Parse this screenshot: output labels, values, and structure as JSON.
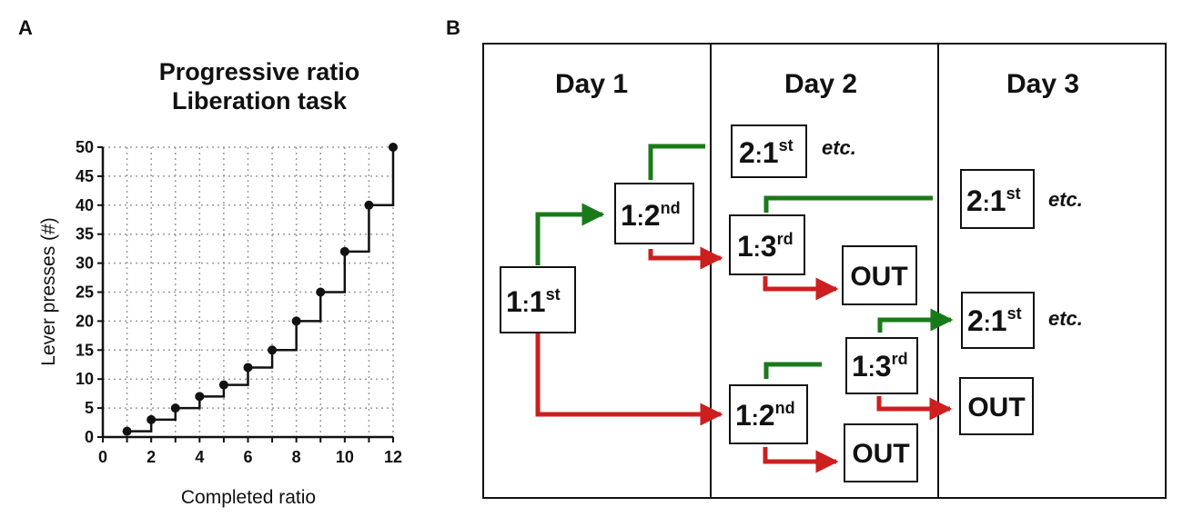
{
  "panel_a": {
    "letter": "A",
    "title_line1": "Progressive ratio",
    "title_line2": "Liberation task"
  },
  "panel_b": {
    "letter": "B",
    "days": [
      "Day 1",
      "Day 2",
      "Day 3"
    ],
    "nodes": [
      {
        "id": "d1-1-1st",
        "main": "1",
        "sep": ":",
        "num": "1",
        "sup": "st"
      },
      {
        "id": "d1-1-2nd",
        "main": "1",
        "sep": ":",
        "num": "2",
        "sup": "nd"
      },
      {
        "id": "d2-2-1st",
        "main": "2",
        "sep": ":",
        "num": "1",
        "sup": "st",
        "etc": "etc."
      },
      {
        "id": "d2-1-3rd-top",
        "main": "1",
        "sep": ":",
        "num": "3",
        "sup": "rd"
      },
      {
        "id": "d2-1-2nd-bottom",
        "main": "1",
        "sep": ":",
        "num": "2",
        "sup": "nd"
      },
      {
        "id": "d2-1-3rd-bottom",
        "main": "1",
        "sep": ":",
        "num": "3",
        "sup": "rd"
      },
      {
        "id": "d3-2-1st-top",
        "main": "2",
        "sep": ":",
        "num": "1",
        "sup": "st",
        "etc": "etc."
      },
      {
        "id": "d3-2-1st-bottom",
        "main": "2",
        "sep": ":",
        "num": "1",
        "sup": "st",
        "etc": "etc."
      }
    ],
    "outs": [
      "OUT",
      "OUT",
      "OUT"
    ],
    "colors": {
      "advance": "#1a7a1a",
      "fail": "#cc1f1f",
      "border": "#111111"
    }
  },
  "chart_data": {
    "type": "line",
    "step": true,
    "xlabel": "Completed ratio",
    "ylabel": "Lever presses  (#)",
    "xlim": [
      0,
      12
    ],
    "ylim": [
      0,
      50
    ],
    "xticks": [
      0,
      2,
      4,
      6,
      8,
      10,
      12
    ],
    "yticks": [
      0,
      5,
      10,
      15,
      20,
      25,
      30,
      35,
      40,
      45,
      50
    ],
    "grid": true,
    "x": [
      1,
      2,
      3,
      4,
      5,
      6,
      7,
      8,
      9,
      10,
      11,
      12
    ],
    "y": [
      1,
      3,
      5,
      7,
      9,
      12,
      15,
      20,
      25,
      32,
      40,
      50
    ],
    "color": "#111111"
  }
}
